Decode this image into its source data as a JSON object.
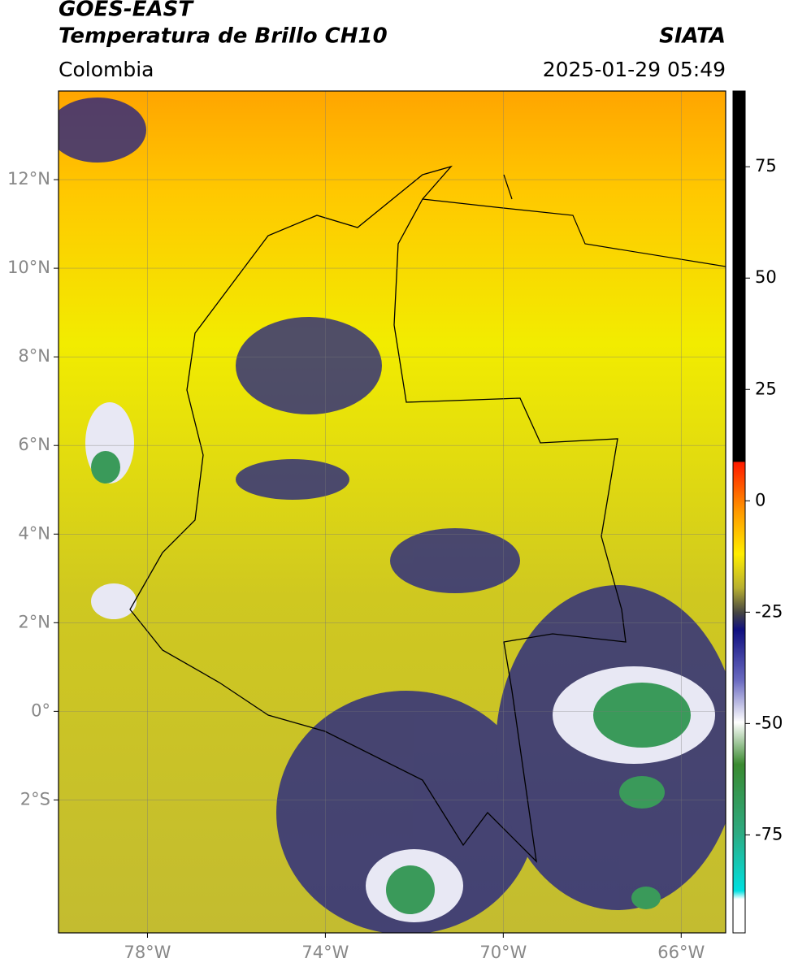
{
  "header": {
    "title": "GOES-EAST",
    "subtitle": "Temperatura de Brillo CH10",
    "agency": "SIATA",
    "region": "Colombia",
    "timestamp": "2025-01-29 05:49"
  },
  "map": {
    "lonlim": [
      -80,
      -65
    ],
    "latlim": [
      -5,
      14
    ],
    "lonticks": [
      {
        "value": -78,
        "label": "78°W"
      },
      {
        "value": -74,
        "label": "74°W"
      },
      {
        "value": -70,
        "label": "70°W"
      },
      {
        "value": -66,
        "label": "66°W"
      }
    ],
    "latticks": [
      {
        "value": 12,
        "label": "12°N"
      },
      {
        "value": 10,
        "label": "10°N"
      },
      {
        "value": 8,
        "label": "8°N"
      },
      {
        "value": 6,
        "label": "6°N"
      },
      {
        "value": 4,
        "label": "4°N"
      },
      {
        "value": 2,
        "label": "2°N"
      },
      {
        "value": 0,
        "label": "0°"
      },
      {
        "value": -2,
        "label": "2°S"
      }
    ],
    "grid": true
  },
  "colorbar": {
    "lim": [
      -97,
      92
    ],
    "ticks": [
      75,
      50,
      25,
      0,
      -25,
      -50,
      -75
    ]
  }
}
